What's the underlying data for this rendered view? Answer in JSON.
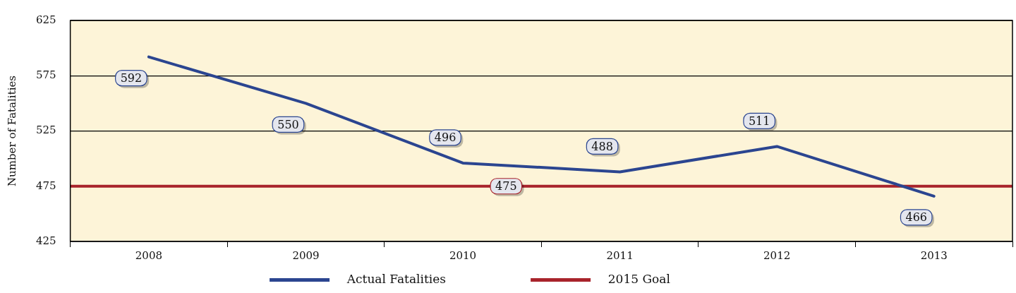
{
  "chart_data": {
    "type": "line",
    "ylabel": "Number of Fatalities",
    "categories": [
      "2008",
      "2009",
      "2010",
      "2011",
      "2012",
      "2013"
    ],
    "series": [
      {
        "name": "Actual Fatalities",
        "color": "#2b4590",
        "values": [
          592,
          550,
          496,
          488,
          511,
          466
        ]
      }
    ],
    "ref_lines": [
      {
        "axis": "y",
        "value": 475,
        "label": "2015 Goal",
        "color": "#a8232b"
      }
    ],
    "annotations": [
      {
        "text": "475",
        "y": 475
      }
    ],
    "ylim": [
      425,
      625
    ],
    "yticks": [
      425,
      475,
      525,
      575,
      625
    ],
    "grid": "y",
    "data_labels": true,
    "legend": "bottom",
    "marker": "none",
    "line_style": "solid"
  }
}
